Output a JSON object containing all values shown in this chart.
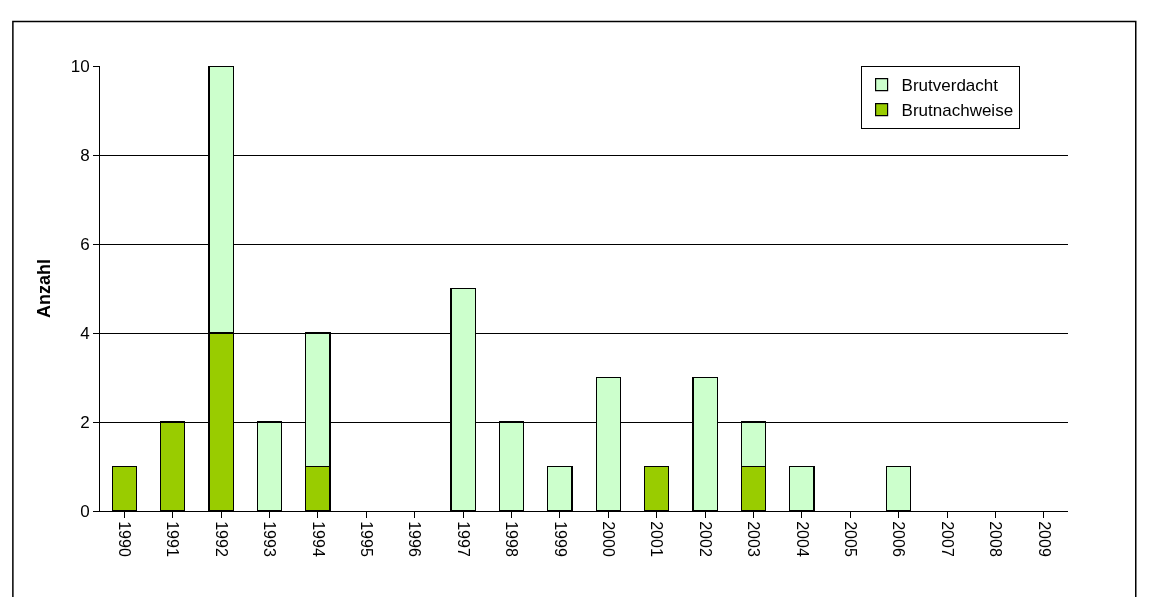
{
  "chart_data": {
    "type": "bar",
    "stacked": true,
    "ylabel": "Anzahl",
    "categories": [
      "1990",
      "1991",
      "1992",
      "1993",
      "1994",
      "1995",
      "1996",
      "1997",
      "1998",
      "1999",
      "2000",
      "2001",
      "2002",
      "2003",
      "2004",
      "2005",
      "2006",
      "2007",
      "2008",
      "2009"
    ],
    "series": [
      {
        "name": "Brutnachweise",
        "color": "#99cc00",
        "values": [
          1,
          2,
          4,
          null,
          1,
          null,
          null,
          null,
          null,
          null,
          null,
          1,
          null,
          1,
          null,
          null,
          null,
          null,
          null,
          null
        ]
      },
      {
        "name": "Brutverdacht",
        "color": "#ccffcc",
        "values": [
          null,
          null,
          6,
          2,
          3,
          null,
          null,
          5,
          2,
          1,
          3,
          null,
          3,
          1,
          1,
          null,
          1,
          null,
          null,
          null
        ]
      }
    ],
    "ylim": [
      0,
      10
    ],
    "yticks": [
      0,
      2,
      4,
      6,
      8,
      10
    ],
    "grid": "y",
    "legend": "top right"
  }
}
